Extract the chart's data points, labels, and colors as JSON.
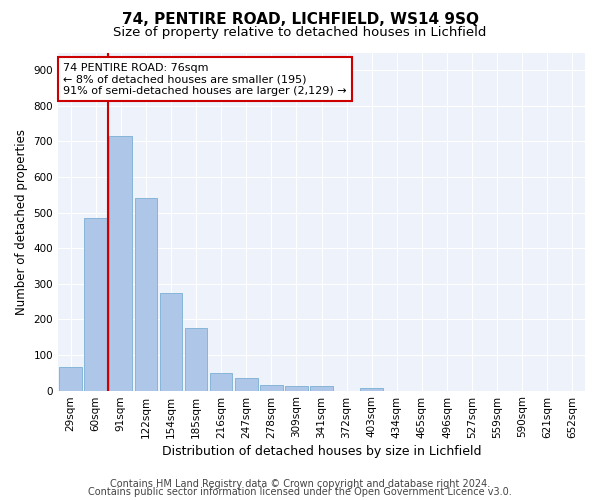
{
  "title1": "74, PENTIRE ROAD, LICHFIELD, WS14 9SQ",
  "title2": "Size of property relative to detached houses in Lichfield",
  "xlabel": "Distribution of detached houses by size in Lichfield",
  "ylabel": "Number of detached properties",
  "categories": [
    "29sqm",
    "60sqm",
    "91sqm",
    "122sqm",
    "154sqm",
    "185sqm",
    "216sqm",
    "247sqm",
    "278sqm",
    "309sqm",
    "341sqm",
    "372sqm",
    "403sqm",
    "434sqm",
    "465sqm",
    "496sqm",
    "527sqm",
    "559sqm",
    "590sqm",
    "621sqm",
    "652sqm"
  ],
  "values": [
    65,
    485,
    715,
    540,
    275,
    175,
    48,
    35,
    15,
    12,
    12,
    0,
    8,
    0,
    0,
    0,
    0,
    0,
    0,
    0,
    0
  ],
  "bar_color": "#aec6e8",
  "bar_edge_color": "#7aafd4",
  "vline_color": "#cc0000",
  "vline_x_index": 2,
  "annotation_text": "74 PENTIRE ROAD: 76sqm\n← 8% of detached houses are smaller (195)\n91% of semi-detached houses are larger (2,129) →",
  "annotation_box_color": "#ffffff",
  "annotation_box_edge": "#cc0000",
  "ylim": [
    0,
    950
  ],
  "yticks": [
    0,
    100,
    200,
    300,
    400,
    500,
    600,
    700,
    800,
    900
  ],
  "footer1": "Contains HM Land Registry data © Crown copyright and database right 2024.",
  "footer2": "Contains public sector information licensed under the Open Government Licence v3.0.",
  "bg_color": "#eef2fa",
  "fig_bg_color": "#ffffff",
  "title1_fontsize": 11,
  "title2_fontsize": 9.5,
  "xlabel_fontsize": 9,
  "ylabel_fontsize": 8.5,
  "tick_fontsize": 7.5,
  "annotation_fontsize": 8,
  "footer_fontsize": 7
}
